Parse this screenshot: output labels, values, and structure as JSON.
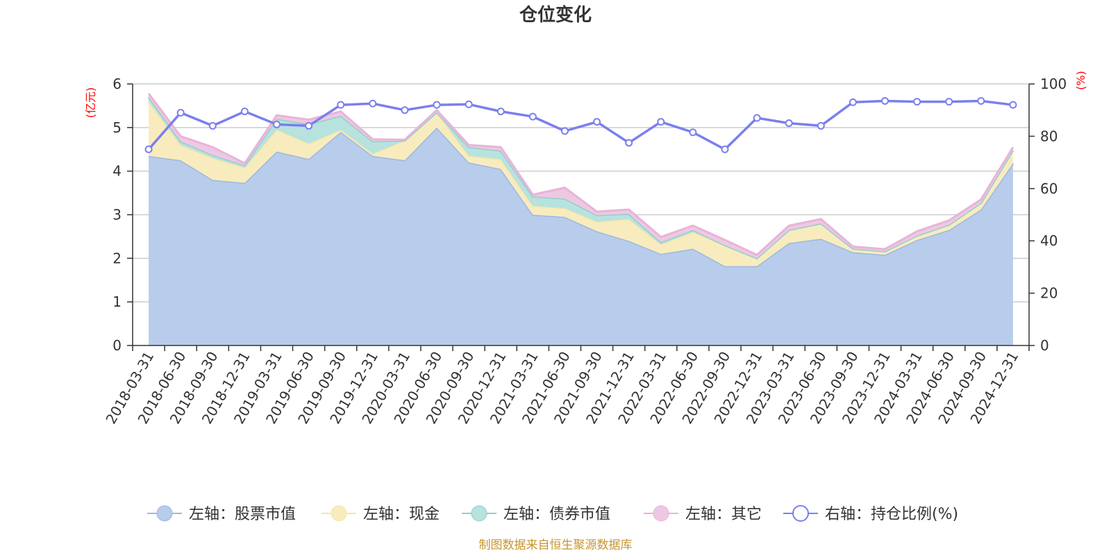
{
  "chart_data": {
    "type": "area+line",
    "title": "仓位变化",
    "left_unit": "(亿元)",
    "right_unit": "(%)",
    "left_ylim": [
      0,
      6
    ],
    "left_ticks": [
      "0",
      "1",
      "2",
      "3",
      "4",
      "5",
      "6"
    ],
    "right_ylim": [
      0,
      100
    ],
    "right_ticks": [
      "0",
      "20",
      "40",
      "60",
      "80",
      "100"
    ],
    "categories": [
      "2018-03-31",
      "2018-06-30",
      "2018-09-30",
      "2018-12-31",
      "2019-03-31",
      "2019-06-30",
      "2019-09-30",
      "2019-12-31",
      "2020-03-31",
      "2020-06-30",
      "2020-09-30",
      "2020-12-31",
      "2021-03-31",
      "2021-06-30",
      "2021-09-30",
      "2021-12-31",
      "2022-03-31",
      "2022-06-30",
      "2022-09-30",
      "2022-12-31",
      "2023-03-31",
      "2023-06-30",
      "2023-09-30",
      "2023-12-31",
      "2024-03-31",
      "2024-06-30",
      "2024-09-30",
      "2024-12-31"
    ],
    "stacked_series": [
      {
        "name": "左轴：股票市值",
        "color": "#9db8e0",
        "fill": "#b8cceb",
        "values": [
          4.35,
          4.25,
          3.8,
          3.73,
          4.45,
          4.28,
          4.9,
          4.35,
          4.25,
          5.0,
          4.2,
          4.05,
          3.0,
          2.95,
          2.62,
          2.4,
          2.1,
          2.22,
          1.82,
          1.82,
          2.35,
          2.45,
          2.14,
          2.08,
          2.42,
          2.65,
          3.12,
          4.18
        ]
      },
      {
        "name": "左轴：现金",
        "color": "#f5e7a8",
        "fill": "#f8ecbe",
        "values": [
          1.25,
          0.35,
          0.5,
          0.35,
          0.5,
          0.35,
          0.05,
          0.05,
          0.45,
          0.35,
          0.15,
          0.22,
          0.2,
          0.2,
          0.22,
          0.5,
          0.22,
          0.38,
          0.48,
          0.18,
          0.3,
          0.35,
          0.08,
          0.08,
          0.1,
          0.12,
          0.15,
          0.3
        ]
      },
      {
        "name": "左轴：债券市值",
        "color": "#8fd0d0",
        "fill": "#b8e2de",
        "values": [
          0.1,
          0.08,
          0.07,
          0.05,
          0.25,
          0.45,
          0.32,
          0.28,
          0,
          0,
          0.2,
          0.2,
          0.22,
          0.22,
          0.15,
          0.12,
          0.05,
          0.05,
          0,
          0,
          0,
          0,
          0,
          0,
          0,
          0,
          0,
          0
        ]
      },
      {
        "name": "左轴：其它",
        "color": "#e8b4d8",
        "fill": "#eec8e2",
        "values": [
          0.08,
          0.12,
          0.18,
          0.05,
          0.08,
          0.1,
          0.1,
          0.05,
          0.02,
          0.05,
          0.05,
          0.08,
          0.04,
          0.25,
          0.08,
          0.1,
          0.12,
          0.1,
          0.12,
          0.08,
          0.1,
          0.1,
          0.05,
          0.05,
          0.1,
          0.1,
          0.08,
          0.07
        ]
      }
    ],
    "line_series": {
      "name": "右轴：持仓比例(%)",
      "color": "#7b7fee",
      "values": [
        75,
        89,
        84,
        89.5,
        84.5,
        84,
        92,
        92.5,
        90,
        92,
        92.2,
        89.5,
        87.5,
        82,
        85.5,
        77.5,
        85.5,
        81.5,
        75,
        87,
        85,
        84,
        93,
        93.5,
        93.2,
        93.2,
        93.5,
        92
      ]
    },
    "legend_position": "bottom-center",
    "grid": true
  },
  "source_note": "制图数据来自恒生聚源数据库"
}
